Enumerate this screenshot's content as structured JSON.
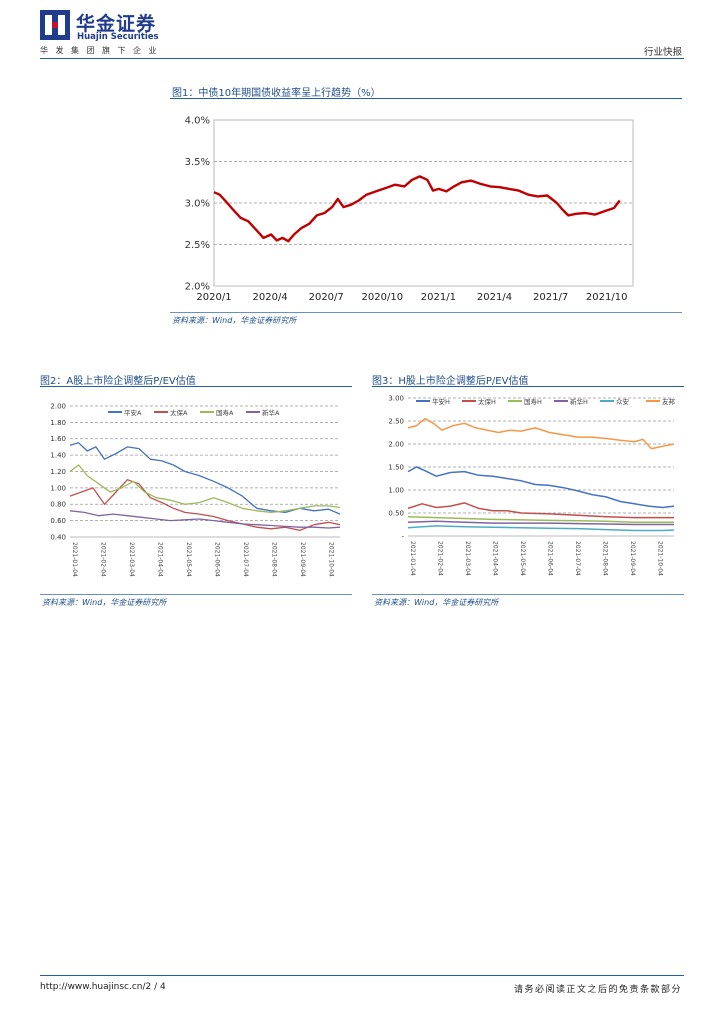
{
  "header": {
    "brand_cn": "华金证券",
    "brand_en": "Huajin Securities",
    "tagline": "华发集团旗下企业",
    "doc_type": "行业快报",
    "colors": {
      "brand_blue": "#1f3c8f",
      "brand_red": "#c8102e",
      "rule_blue": "#1f5fa8"
    }
  },
  "figure1": {
    "title": "图1：中债10年期国债收益率呈上行趋势（%）",
    "source": "资料来源：Wind，华金证券研究所",
    "chart_data": {
      "type": "line",
      "title": "中债10年期国债收益率",
      "y_ticks": [
        "4.0%",
        "3.5%",
        "3.0%",
        "2.5%",
        "2.0%"
      ],
      "ylim": [
        2.0,
        4.0
      ],
      "x_ticks": [
        "2020/1",
        "2020/4",
        "2020/7",
        "2020/10",
        "2021/1",
        "2021/4",
        "2021/7",
        "2021/10"
      ],
      "xlim": [
        0,
        22
      ],
      "series": [
        {
          "name": "中债10年期国债收益率",
          "color": "#c00000",
          "x": [
            0,
            0.3,
            0.7,
            1.0,
            1.4,
            1.8,
            2.2,
            2.6,
            3.0,
            3.3,
            3.6,
            3.9,
            4.2,
            4.6,
            5.0,
            5.4,
            5.8,
            6.2,
            6.5,
            6.8,
            7.2,
            7.6,
            8.0,
            8.5,
            9.0,
            9.5,
            10.0,
            10.4,
            10.8,
            11.2,
            11.5,
            11.8,
            12.2,
            12.6,
            13.0,
            13.5,
            14.0,
            14.5,
            15.0,
            15.5,
            16.0,
            16.5,
            17.0,
            17.5,
            18.0,
            18.3,
            18.6,
            19.0,
            19.5,
            20.0,
            20.5,
            21.0,
            21.3
          ],
          "values": [
            3.13,
            3.1,
            3.0,
            2.92,
            2.82,
            2.78,
            2.68,
            2.58,
            2.62,
            2.55,
            2.58,
            2.54,
            2.62,
            2.7,
            2.75,
            2.85,
            2.88,
            2.95,
            3.05,
            2.95,
            2.98,
            3.03,
            3.1,
            3.14,
            3.18,
            3.22,
            3.2,
            3.28,
            3.32,
            3.28,
            3.15,
            3.17,
            3.14,
            3.2,
            3.25,
            3.27,
            3.23,
            3.2,
            3.19,
            3.17,
            3.15,
            3.1,
            3.08,
            3.09,
            3.0,
            2.92,
            2.85,
            2.87,
            2.88,
            2.86,
            2.9,
            2.94,
            3.03
          ]
        }
      ]
    }
  },
  "figure2": {
    "title": "图2：A股上市险企调整后P/EV估值",
    "source": "资料来源：Wind，华金证券研究所",
    "chart_data": {
      "type": "line",
      "y_ticks": [
        "2.00",
        "1.80",
        "1.60",
        "1.40",
        "1.20",
        "1.00",
        "0.80",
        "0.60",
        "0.40"
      ],
      "ylim": [
        0.4,
        2.0
      ],
      "x_ticks": [
        "2021-01-04",
        "2021-02-04",
        "2021-03-04",
        "2021-04-04",
        "2021-05-04",
        "2021-06-04",
        "2021-07-04",
        "2021-08-04",
        "2021-09-04",
        "2021-10-04"
      ],
      "xlim": [
        0,
        9.4
      ],
      "series": [
        {
          "name": "平安A",
          "color": "#4472c4",
          "x": [
            0,
            0.3,
            0.6,
            0.9,
            1.2,
            1.6,
            2.0,
            2.4,
            2.8,
            3.2,
            3.6,
            4.0,
            4.5,
            5.0,
            5.5,
            6.0,
            6.5,
            7.0,
            7.5,
            8.0,
            8.5,
            9.0,
            9.4
          ],
          "values": [
            1.52,
            1.55,
            1.45,
            1.5,
            1.35,
            1.42,
            1.5,
            1.48,
            1.35,
            1.33,
            1.28,
            1.2,
            1.15,
            1.08,
            1.0,
            0.9,
            0.75,
            0.72,
            0.7,
            0.75,
            0.72,
            0.74,
            0.68
          ]
        },
        {
          "name": "太保A",
          "color": "#c0504d",
          "x": [
            0,
            0.4,
            0.8,
            1.2,
            1.6,
            2.0,
            2.4,
            2.8,
            3.2,
            3.6,
            4.0,
            4.5,
            5.0,
            5.5,
            6.0,
            6.5,
            7.0,
            7.5,
            8.0,
            8.5,
            9.0,
            9.4
          ],
          "values": [
            0.9,
            0.95,
            1.0,
            0.8,
            0.95,
            1.1,
            1.05,
            0.88,
            0.82,
            0.75,
            0.7,
            0.68,
            0.65,
            0.6,
            0.56,
            0.52,
            0.5,
            0.52,
            0.48,
            0.55,
            0.58,
            0.55
          ]
        },
        {
          "name": "国寿A",
          "color": "#9bbb59",
          "x": [
            0,
            0.3,
            0.6,
            1.0,
            1.4,
            1.8,
            2.2,
            2.6,
            3.0,
            3.5,
            4.0,
            4.5,
            5.0,
            5.5,
            6.0,
            6.5,
            7.0,
            7.5,
            8.0,
            8.5,
            9.0,
            9.4
          ],
          "values": [
            1.2,
            1.28,
            1.15,
            1.05,
            0.95,
            1.0,
            1.08,
            0.95,
            0.88,
            0.85,
            0.8,
            0.82,
            0.88,
            0.82,
            0.75,
            0.72,
            0.7,
            0.72,
            0.75,
            0.78,
            0.78,
            0.76
          ]
        },
        {
          "name": "新华A",
          "color": "#8064a2",
          "x": [
            0,
            0.5,
            1.0,
            1.5,
            2.0,
            2.5,
            3.0,
            3.5,
            4.0,
            4.5,
            5.0,
            5.5,
            6.0,
            6.5,
            7.0,
            7.5,
            8.0,
            8.5,
            9.0,
            9.4
          ],
          "values": [
            0.72,
            0.7,
            0.66,
            0.68,
            0.66,
            0.64,
            0.62,
            0.6,
            0.61,
            0.62,
            0.6,
            0.58,
            0.56,
            0.55,
            0.54,
            0.53,
            0.52,
            0.52,
            0.51,
            0.52
          ]
        }
      ]
    }
  },
  "figure3": {
    "title": "图3：H股上市险企调整后P/EV估值",
    "source": "资料来源：Wind，华金证券研究所",
    "chart_data": {
      "type": "line",
      "y_ticks": [
        "3.00",
        "2.50",
        "2.00",
        "1.50",
        "1.00",
        "0.50",
        "-"
      ],
      "ylim": [
        0,
        3.0
      ],
      "x_ticks": [
        "2021-01-04",
        "2021-02-04",
        "2021-03-04",
        "2021-04-04",
        "2021-05-04",
        "2021-06-04",
        "2021-07-04",
        "2021-08-04",
        "2021-09-04",
        "2021-10-04"
      ],
      "xlim": [
        0,
        9.4
      ],
      "series": [
        {
          "name": "平安H",
          "color": "#4472c4",
          "x": [
            0,
            0.3,
            0.6,
            1.0,
            1.5,
            2.0,
            2.5,
            3.0,
            3.5,
            4.0,
            4.5,
            5.0,
            5.5,
            6.0,
            6.5,
            7.0,
            7.5,
            8.0,
            8.5,
            9.0,
            9.4
          ],
          "values": [
            1.4,
            1.5,
            1.42,
            1.3,
            1.38,
            1.4,
            1.32,
            1.3,
            1.25,
            1.2,
            1.12,
            1.1,
            1.05,
            0.98,
            0.9,
            0.85,
            0.75,
            0.7,
            0.65,
            0.62,
            0.65
          ]
        },
        {
          "name": "太保H",
          "color": "#c0504d",
          "x": [
            0,
            0.5,
            1.0,
            1.5,
            2.0,
            2.5,
            3.0,
            3.5,
            4.0,
            5.0,
            6.0,
            7.0,
            8.0,
            9.0,
            9.4
          ],
          "values": [
            0.6,
            0.7,
            0.62,
            0.65,
            0.72,
            0.6,
            0.55,
            0.55,
            0.5,
            0.48,
            0.45,
            0.42,
            0.4,
            0.4,
            0.4
          ]
        },
        {
          "name": "国寿H",
          "color": "#9bbb59",
          "x": [
            0,
            1.0,
            2.0,
            3.0,
            4.0,
            5.0,
            6.0,
            7.0,
            8.0,
            9.0,
            9.4
          ],
          "values": [
            0.42,
            0.4,
            0.38,
            0.36,
            0.35,
            0.34,
            0.33,
            0.32,
            0.3,
            0.3,
            0.3
          ]
        },
        {
          "name": "新华H",
          "color": "#8064a2",
          "x": [
            0,
            1.0,
            2.0,
            3.0,
            4.0,
            5.0,
            6.0,
            7.0,
            8.0,
            9.0,
            9.4
          ],
          "values": [
            0.3,
            0.32,
            0.3,
            0.28,
            0.28,
            0.28,
            0.27,
            0.26,
            0.25,
            0.25,
            0.25
          ]
        },
        {
          "name": "众安",
          "color": "#4bacc6",
          "x": [
            0,
            1.0,
            2.0,
            3.0,
            4.0,
            5.0,
            6.0,
            7.0,
            8.0,
            9.0,
            9.4
          ],
          "values": [
            0.18,
            0.22,
            0.2,
            0.19,
            0.18,
            0.17,
            0.16,
            0.14,
            0.12,
            0.12,
            0.13
          ]
        },
        {
          "name": "友邦",
          "color": "#f79646",
          "x": [
            0,
            0.3,
            0.6,
            0.9,
            1.2,
            1.6,
            2.0,
            2.4,
            2.8,
            3.2,
            3.6,
            4.0,
            4.5,
            5.0,
            5.5,
            6.0,
            6.5,
            7.0,
            7.5,
            8.0,
            8.3,
            8.6,
            9.0,
            9.4
          ],
          "values": [
            2.35,
            2.4,
            2.55,
            2.45,
            2.3,
            2.4,
            2.45,
            2.35,
            2.3,
            2.25,
            2.3,
            2.28,
            2.35,
            2.25,
            2.2,
            2.15,
            2.15,
            2.12,
            2.08,
            2.05,
            2.1,
            1.9,
            1.95,
            2.0
          ]
        }
      ]
    }
  },
  "footer": {
    "url": "http://www.huajinsc.cn/2 / 4",
    "disclaimer": "请务必阅读正文之后的免责条款部分"
  }
}
